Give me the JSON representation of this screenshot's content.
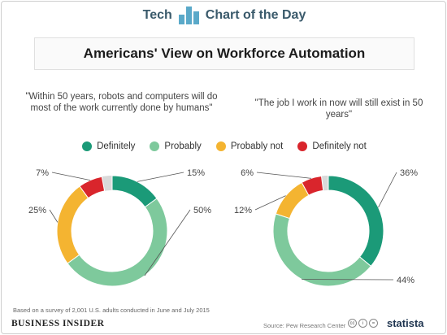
{
  "header": {
    "tech": "Tech",
    "chart_of_the_day": "Chart of the Day"
  },
  "colors": {
    "definitely": "#1b9a78",
    "probably": "#7ec99c",
    "probably_not": "#f4b431",
    "definitely_not": "#d9252c",
    "gap": "#d9d9d9"
  },
  "chart_data": [
    {
      "type": "pie",
      "title": "Americans' View on Workforce Automation",
      "subtitle": "\"Within 50 years, robots and computers will do most of the work currently done by humans\"",
      "legend_placement": "top",
      "categories": [
        "Definitely",
        "Probably",
        "Probably not",
        "Definitely not"
      ],
      "values": [
        15,
        50,
        25,
        7
      ],
      "labels": [
        "15%",
        "50%",
        "25%",
        "7%"
      ]
    },
    {
      "type": "pie",
      "title": "Americans' View on Workforce Automation",
      "subtitle": "\"The job I work in now will still exist in 50 years\"",
      "legend_placement": "top",
      "categories": [
        "Definitely",
        "Probably",
        "Probably not",
        "Definitely not"
      ],
      "values": [
        36,
        44,
        12,
        6
      ],
      "labels": [
        "36%",
        "44%",
        "12%",
        "6%"
      ]
    }
  ],
  "footer": {
    "note": "Based on a survey of 2,001 U.S. adults conducted in June and July 2015",
    "brand": "BUSINESS INSIDER",
    "source": "Source: Pew Research Center",
    "statista": "statista"
  }
}
